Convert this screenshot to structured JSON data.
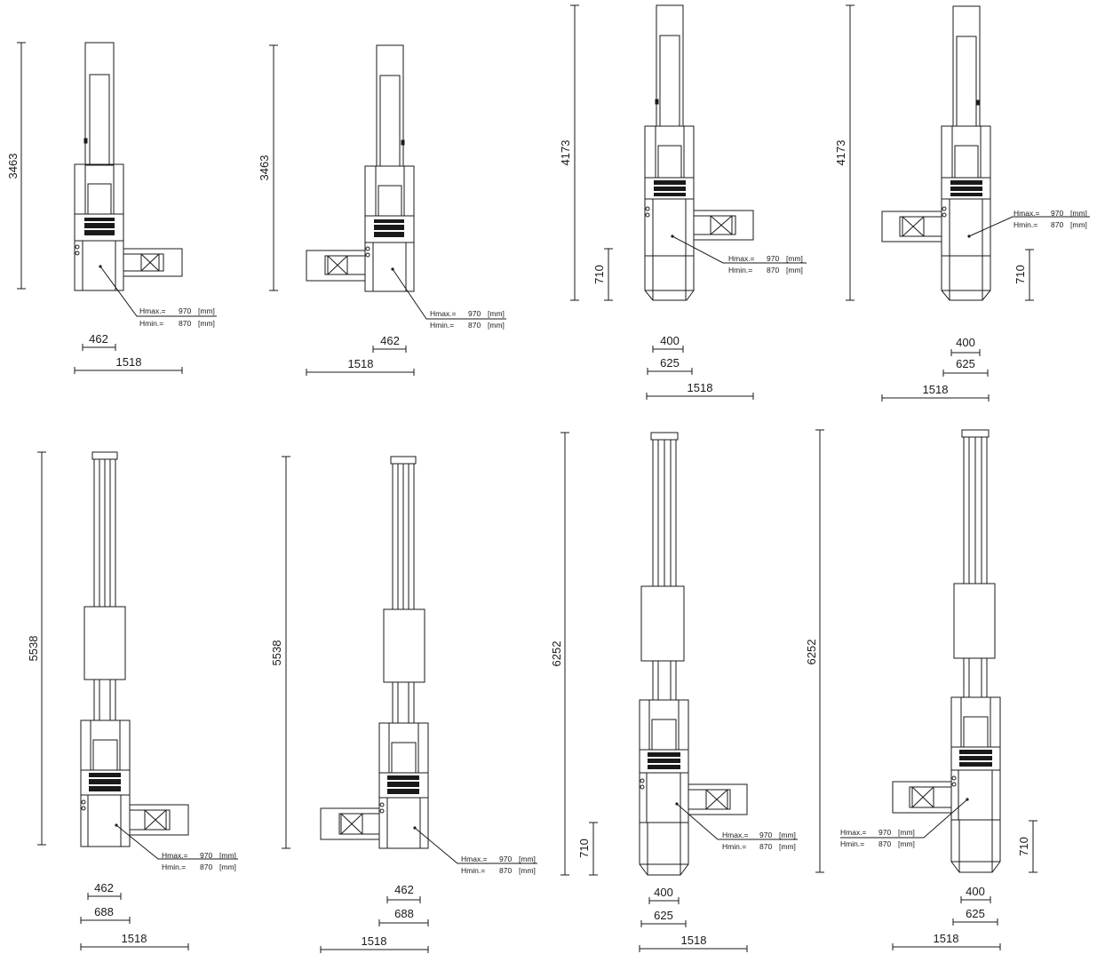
{
  "drawing": {
    "line_color": "#1a1a1a",
    "fill_color": "#1a1a1a",
    "background": "#ffffff"
  },
  "labels": {
    "hmax": "Hmax.=",
    "hmin": "Hmin.=",
    "hmax_value": "970",
    "hmin_value": "870",
    "unit": "[mm]"
  },
  "dimensions": {
    "d3463": "3463",
    "d4173": "4173",
    "d5538": "5538",
    "d6252": "6252",
    "d710": "710",
    "d462": "462",
    "d400": "400",
    "d625": "625",
    "d688": "688",
    "d1518": "1518"
  },
  "views": [
    {
      "name": "short-conveyor-right"
    },
    {
      "name": "short-conveyor-left"
    },
    {
      "name": "medium-conveyor-right"
    },
    {
      "name": "medium-conveyor-left"
    },
    {
      "name": "long-conveyor-right"
    },
    {
      "name": "long-conveyor-left"
    },
    {
      "name": "extra-long-conveyor-right"
    },
    {
      "name": "extra-long-conveyor-left"
    }
  ]
}
